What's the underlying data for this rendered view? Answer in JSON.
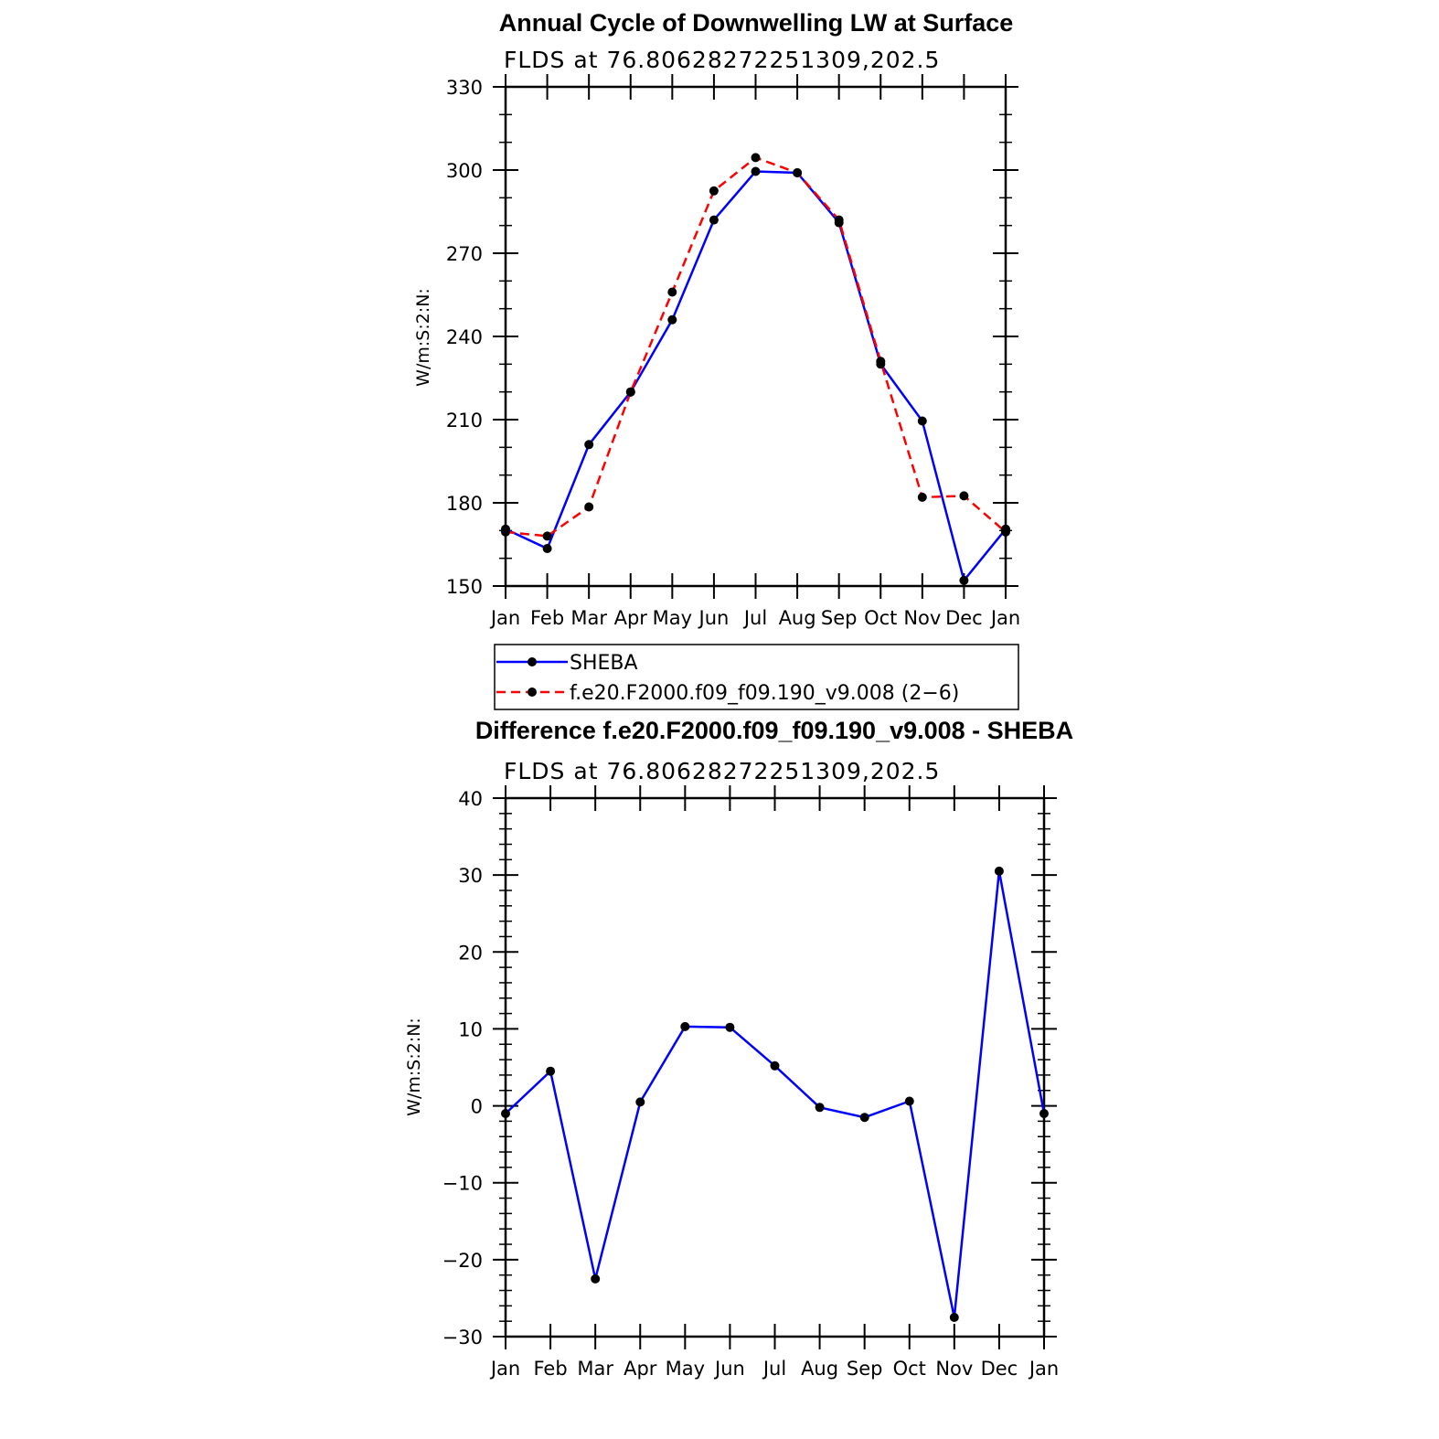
{
  "chart_data": [
    {
      "type": "line",
      "title": "Annual Cycle of Downwelling LW at Surface",
      "subtitle": "FLDS at 76.80628272251309,202.5",
      "ylabel": "W/m:S:2:N:",
      "xlabel": "",
      "categories": [
        "Jan",
        "Feb",
        "Mar",
        "Apr",
        "May",
        "Jun",
        "Jul",
        "Aug",
        "Sep",
        "Oct",
        "Nov",
        "Dec",
        "Jan"
      ],
      "ylim": [
        150,
        330
      ],
      "yticks": [
        "150",
        "180",
        "210",
        "240",
        "270",
        "300",
        "330"
      ],
      "grid": false,
      "legend_position": "below",
      "series": [
        {
          "name": "SHEBA",
          "color": "#0000ff",
          "dash": "solid",
          "values": [
            170.5,
            163.5,
            201,
            220,
            246,
            282,
            299.5,
            299,
            281,
            230,
            209.5,
            152,
            170.5
          ]
        },
        {
          "name": "f.e20.F2000.f09_f09.190_v9.008 (2−6)",
          "color": "#ff0000",
          "dash": "dashed",
          "values": [
            169.5,
            168,
            178.5,
            220,
            256,
            292.5,
            304.5,
            299,
            282,
            231,
            182,
            182.5,
            169.5
          ]
        }
      ]
    },
    {
      "type": "line",
      "title": "Difference f.e20.F2000.f09_f09.190_v9.008 - SHEBA",
      "subtitle": "FLDS at 76.80628272251309,202.5",
      "ylabel": "W/m:S:2:N:",
      "xlabel": "",
      "categories": [
        "Jan",
        "Feb",
        "Mar",
        "Apr",
        "May",
        "Jun",
        "Jul",
        "Aug",
        "Sep",
        "Oct",
        "Nov",
        "Dec",
        "Jan"
      ],
      "ylim": [
        -30,
        40
      ],
      "yticks": [
        "−30",
        "−20",
        "−10",
        "0",
        "10",
        "20",
        "30",
        "40"
      ],
      "grid": false,
      "series": [
        {
          "color": "#0000ff",
          "dash": "solid",
          "values": [
            -1,
            4.5,
            -22.5,
            0.5,
            10.3,
            10.2,
            5.2,
            -0.2,
            -1.5,
            0.6,
            -27.5,
            30.5,
            -1
          ]
        }
      ]
    }
  ]
}
